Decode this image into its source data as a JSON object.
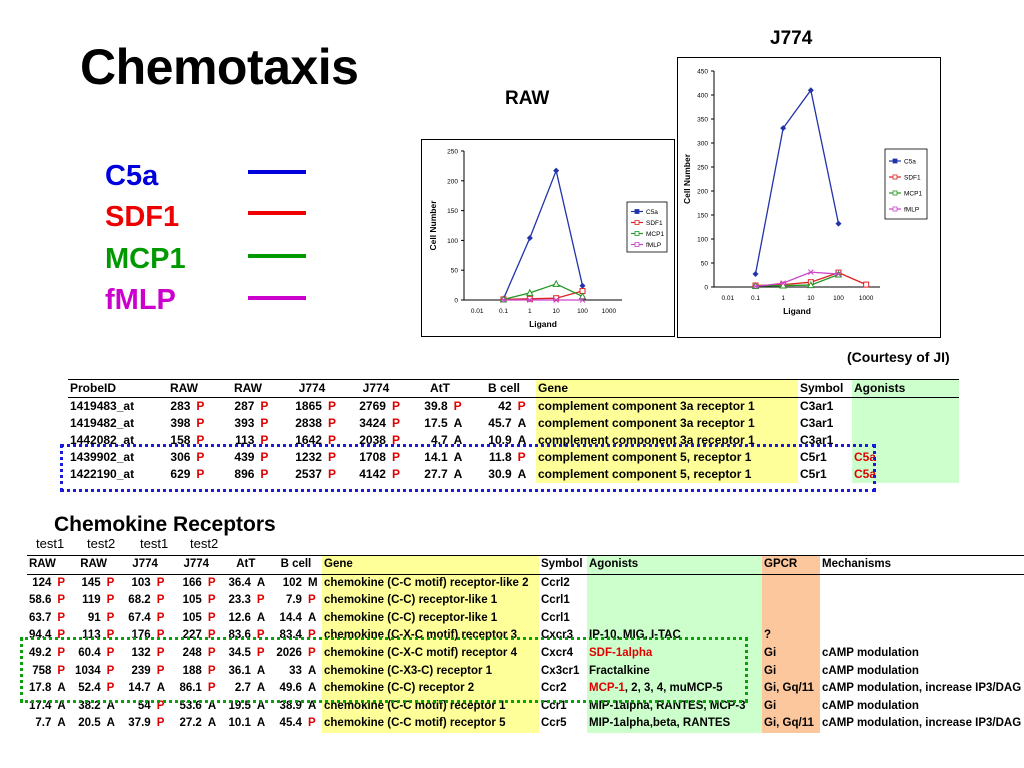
{
  "title": "Chemotaxis",
  "legend": [
    {
      "label": "C5a",
      "color": "#0000dd"
    },
    {
      "label": "SDF1",
      "color": "#ee0000"
    },
    {
      "label": "MCP1",
      "color": "#009900"
    },
    {
      "label": "fMLP",
      "color": "#cc00cc"
    }
  ],
  "charts": {
    "raw_label": "RAW",
    "j774_label": "J774",
    "courtesy": "(Courtesy of JI)"
  },
  "chart_data": [
    {
      "type": "line",
      "title": "RAW",
      "xlabel": "Ligand",
      "ylabel": "Cell Number",
      "categories": [
        "0.01",
        "0.1",
        "1",
        "10",
        "100",
        "1000"
      ],
      "ylim": [
        0,
        250
      ],
      "yticks": [
        0,
        50,
        100,
        150,
        200,
        250
      ],
      "legend_position": "right",
      "series": [
        {
          "name": "C5a",
          "color": "#2233aa",
          "marker": "diamond",
          "values": [
            null,
            2,
            104,
            217,
            24,
            null
          ]
        },
        {
          "name": "SDF1",
          "color": "#dd2222",
          "marker": "square",
          "values": [
            null,
            1,
            2,
            3,
            15,
            null
          ]
        },
        {
          "name": "MCP1",
          "color": "#229922",
          "marker": "triangle",
          "values": [
            null,
            1,
            12,
            27,
            6,
            null
          ]
        },
        {
          "name": "fMLP",
          "color": "#cc44cc",
          "marker": "x",
          "values": [
            null,
            0,
            0,
            0,
            0,
            null
          ]
        }
      ]
    },
    {
      "type": "line",
      "title": "J774",
      "xlabel": "Ligand",
      "ylabel": "Cell Number",
      "categories": [
        "0.01",
        "0.1",
        "1",
        "10",
        "100",
        "1000"
      ],
      "ylim": [
        0,
        450
      ],
      "yticks": [
        0,
        50,
        100,
        150,
        200,
        250,
        300,
        350,
        400,
        450
      ],
      "legend_position": "right",
      "series": [
        {
          "name": "C5a",
          "color": "#2233aa",
          "marker": "diamond",
          "values": [
            null,
            27,
            331,
            410,
            132,
            null
          ]
        },
        {
          "name": "SDF1",
          "color": "#dd2222",
          "marker": "square",
          "values": [
            null,
            3,
            5,
            10,
            30,
            5
          ]
        },
        {
          "name": "MCP1",
          "color": "#229922",
          "marker": "triangle",
          "values": [
            null,
            2,
            3,
            4,
            26,
            null
          ]
        },
        {
          "name": "fMLP",
          "color": "#cc44cc",
          "marker": "x",
          "values": [
            null,
            1,
            8,
            31,
            27,
            null
          ]
        }
      ]
    }
  ],
  "table1": {
    "headers": [
      "ProbeID",
      "RAW",
      "RAW",
      "J774",
      "J774",
      "AtT",
      "B cell",
      "Gene",
      "Symbol",
      "Agonists"
    ],
    "rows": [
      {
        "probe": "1419483_at",
        "v": [
          [
            "283",
            "P"
          ],
          [
            "287",
            "P"
          ],
          [
            "1865",
            "P"
          ],
          [
            "2769",
            "P"
          ],
          [
            "39.8",
            "P"
          ],
          [
            "42",
            "P"
          ]
        ],
        "gene": "complement component 3a receptor 1",
        "symbol": "C3ar1",
        "agonist": ""
      },
      {
        "probe": "1419482_at",
        "v": [
          [
            "398",
            "P"
          ],
          [
            "393",
            "P"
          ],
          [
            "2838",
            "P"
          ],
          [
            "3424",
            "P"
          ],
          [
            "17.5",
            "A"
          ],
          [
            "45.7",
            "A"
          ]
        ],
        "gene": "complement component 3a receptor 1",
        "symbol": "C3ar1",
        "agonist": ""
      },
      {
        "probe": "1442082_at",
        "v": [
          [
            "158",
            "P"
          ],
          [
            "113",
            "P"
          ],
          [
            "1642",
            "P"
          ],
          [
            "2038",
            "P"
          ],
          [
            "4.7",
            "A"
          ],
          [
            "10.9",
            "A"
          ]
        ],
        "gene": "complement component 3a receptor 1",
        "symbol": "C3ar1",
        "agonist": ""
      },
      {
        "probe": "1439902_at",
        "v": [
          [
            "306",
            "P"
          ],
          [
            "439",
            "P"
          ],
          [
            "1232",
            "P"
          ],
          [
            "1708",
            "P"
          ],
          [
            "14.1",
            "A"
          ],
          [
            "11.8",
            "P"
          ]
        ],
        "gene": "complement component 5, receptor 1",
        "symbol": "C5r1",
        "agonist": "C5a"
      },
      {
        "probe": "1422190_at",
        "v": [
          [
            "629",
            "P"
          ],
          [
            "896",
            "P"
          ],
          [
            "2537",
            "P"
          ],
          [
            "4142",
            "P"
          ],
          [
            "27.7",
            "A"
          ],
          [
            "30.9",
            "A"
          ]
        ],
        "gene": "complement component 5, receptor 1",
        "symbol": "C5r1",
        "agonist": "C5a"
      }
    ]
  },
  "chemokine": {
    "title": "Chemokine Receptors",
    "test_labels": [
      "test1",
      "test2",
      "test1",
      "test2"
    ],
    "headers": [
      "RAW",
      "RAW",
      "J774",
      "J774",
      "AtT",
      "B cell",
      "Gene",
      "Symbol",
      "Agonists",
      "GPCR",
      "Mechanisms"
    ],
    "rows": [
      {
        "v": [
          [
            "124",
            "P"
          ],
          [
            "145",
            "P"
          ],
          [
            "103",
            "P"
          ],
          [
            "166",
            "P"
          ],
          [
            "36.4",
            "A"
          ],
          [
            "102",
            "M"
          ]
        ],
        "gene": "chemokine (C-C motif) receptor-like 2",
        "symbol": "Ccrl2",
        "agonist": "",
        "agonist_red": "",
        "gpcr": "",
        "mech": ""
      },
      {
        "v": [
          [
            "58.6",
            "P"
          ],
          [
            "119",
            "P"
          ],
          [
            "68.2",
            "P"
          ],
          [
            "105",
            "P"
          ],
          [
            "23.3",
            "P"
          ],
          [
            "7.9",
            "P"
          ]
        ],
        "gene": "chemokine (C-C) receptor-like 1",
        "symbol": "Ccrl1",
        "agonist": "",
        "agonist_red": "",
        "gpcr": "",
        "mech": ""
      },
      {
        "v": [
          [
            "63.7",
            "P"
          ],
          [
            "91",
            "P"
          ],
          [
            "67.4",
            "P"
          ],
          [
            "105",
            "P"
          ],
          [
            "12.6",
            "A"
          ],
          [
            "14.4",
            "A"
          ]
        ],
        "gene": "chemokine (C-C) receptor-like 1",
        "symbol": "Ccrl1",
        "agonist": "",
        "agonist_red": "",
        "gpcr": "",
        "mech": ""
      },
      {
        "v": [
          [
            "94.4",
            "P"
          ],
          [
            "113",
            "P"
          ],
          [
            "176",
            "P"
          ],
          [
            "227",
            "P"
          ],
          [
            "83.6",
            "P"
          ],
          [
            "83.4",
            "P"
          ]
        ],
        "gene": "chemokine (C-X-C motif) receptor 3",
        "symbol": "Cxcr3",
        "agonist": "IP-10, MIG, I-TAC",
        "agonist_red": "",
        "gpcr": "?",
        "mech": ""
      },
      {
        "v": [
          [
            "49.2",
            "P"
          ],
          [
            "60.4",
            "P"
          ],
          [
            "132",
            "P"
          ],
          [
            "248",
            "P"
          ],
          [
            "34.5",
            "P"
          ],
          [
            "2026",
            "P"
          ]
        ],
        "gene": "chemokine (C-X-C motif) receptor 4",
        "symbol": "Cxcr4",
        "agonist": "",
        "agonist_red": "SDF-1alpha",
        "gpcr": "Gi",
        "mech": "cAMP modulation"
      },
      {
        "v": [
          [
            "758",
            "P"
          ],
          [
            "1034",
            "P"
          ],
          [
            "239",
            "P"
          ],
          [
            "188",
            "P"
          ],
          [
            "36.1",
            "A"
          ],
          [
            "33",
            "A"
          ]
        ],
        "gene": "chemokine (C-X3-C) receptor 1",
        "symbol": "Cx3cr1",
        "agonist": "Fractalkine",
        "agonist_red": "",
        "gpcr": "Gi",
        "mech": "cAMP modulation"
      },
      {
        "v": [
          [
            "17.8",
            "A"
          ],
          [
            "52.4",
            "P"
          ],
          [
            "14.7",
            "A"
          ],
          [
            "86.1",
            "P"
          ],
          [
            "2.7",
            "A"
          ],
          [
            "49.6",
            "A"
          ]
        ],
        "gene": "chemokine (C-C) receptor 2",
        "symbol": "Ccr2",
        "agonist": ", 2, 3, 4, muMCP-5",
        "agonist_red": "MCP-1",
        "gpcr": "Gi, Gq/11",
        "mech": "cAMP modulation, increase IP3/DAG"
      },
      {
        "v": [
          [
            "17.4",
            "A"
          ],
          [
            "38.2",
            "A"
          ],
          [
            "54",
            "P"
          ],
          [
            "53.6",
            "A"
          ],
          [
            "19.5",
            "A"
          ],
          [
            "38.9",
            "A"
          ]
        ],
        "gene": "chemokine (C-C motif) receptor 1",
        "symbol": "Ccr1",
        "agonist": "MIP-1alpha, RANTES, MCP-3",
        "agonist_red": "",
        "gpcr": "Gi",
        "mech": "cAMP modulation"
      },
      {
        "v": [
          [
            "7.7",
            "A"
          ],
          [
            "20.5",
            "A"
          ],
          [
            "37.9",
            "P"
          ],
          [
            "27.2",
            "A"
          ],
          [
            "10.1",
            "A"
          ],
          [
            "45.4",
            "P"
          ]
        ],
        "gene": "chemokine (C-C motif) receptor 5",
        "symbol": "Ccr5",
        "agonist": "MIP-1alpha,beta, RANTES",
        "agonist_red": "",
        "gpcr": "Gi, Gq/11",
        "mech": "cAMP modulation, increase IP3/DAG"
      }
    ]
  }
}
